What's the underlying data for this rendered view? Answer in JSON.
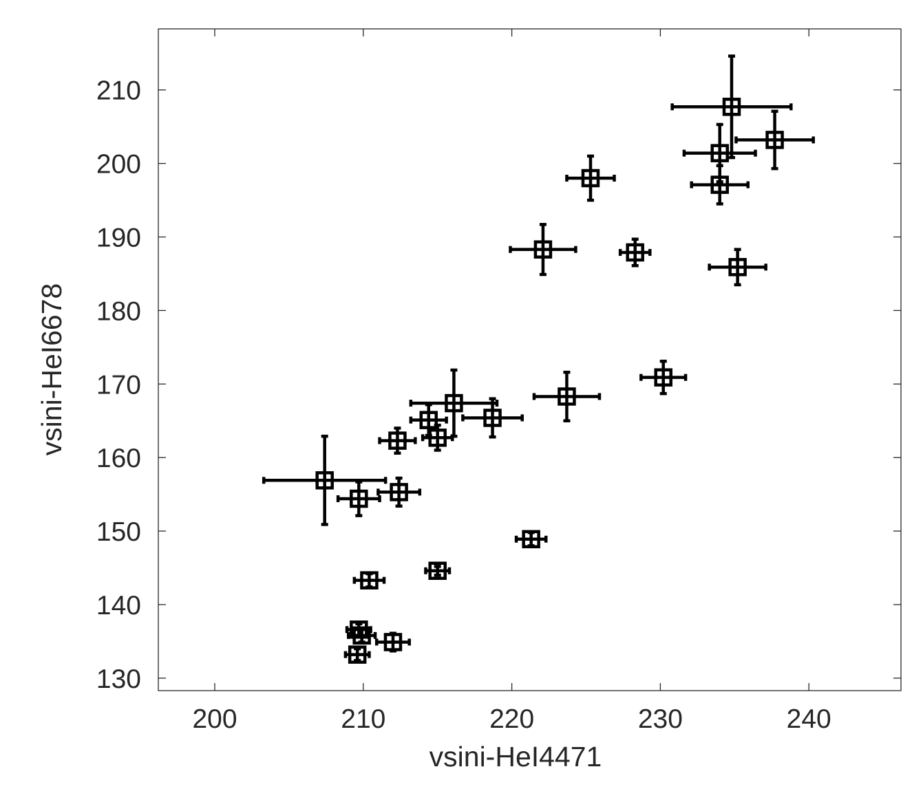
{
  "chart_data": {
    "type": "scatter",
    "title": "",
    "xlabel": "vsini-HeI4471",
    "ylabel": "vsini-HeI6678",
    "xlim": [
      196.2,
      246.2
    ],
    "ylim": [
      128.3,
      218.3
    ],
    "xticks": [
      200,
      210,
      220,
      230,
      240
    ],
    "yticks": [
      130,
      140,
      150,
      160,
      170,
      180,
      190,
      200,
      210
    ],
    "grid": false,
    "marker": "square",
    "color": "#000000",
    "points": [
      {
        "x": 234.8,
        "y": 207.7,
        "xerr": 4.0,
        "yerr": 6.9
      },
      {
        "x": 237.7,
        "y": 203.2,
        "xerr": 2.6,
        "yerr": 3.9
      },
      {
        "x": 234.0,
        "y": 201.4,
        "xerr": 2.4,
        "yerr": 3.9
      },
      {
        "x": 234.0,
        "y": 197.1,
        "xerr": 1.9,
        "yerr": 2.6
      },
      {
        "x": 225.3,
        "y": 198.0,
        "xerr": 1.6,
        "yerr": 3.0
      },
      {
        "x": 222.1,
        "y": 188.3,
        "xerr": 2.2,
        "yerr": 3.4
      },
      {
        "x": 228.3,
        "y": 187.9,
        "xerr": 1.0,
        "yerr": 1.8
      },
      {
        "x": 235.2,
        "y": 185.9,
        "xerr": 1.9,
        "yerr": 2.4
      },
      {
        "x": 230.2,
        "y": 170.9,
        "xerr": 1.5,
        "yerr": 2.2
      },
      {
        "x": 223.7,
        "y": 168.3,
        "xerr": 2.2,
        "yerr": 3.3
      },
      {
        "x": 216.1,
        "y": 167.4,
        "xerr": 2.9,
        "yerr": 4.5
      },
      {
        "x": 218.7,
        "y": 165.4,
        "xerr": 2.0,
        "yerr": 2.6
      },
      {
        "x": 214.4,
        "y": 165.1,
        "xerr": 1.2,
        "yerr": 2.1
      },
      {
        "x": 215.0,
        "y": 162.7,
        "xerr": 1.0,
        "yerr": 1.7
      },
      {
        "x": 212.3,
        "y": 162.3,
        "xerr": 1.2,
        "yerr": 1.7
      },
      {
        "x": 207.4,
        "y": 156.9,
        "xerr": 4.1,
        "yerr": 6.0
      },
      {
        "x": 209.7,
        "y": 154.4,
        "xerr": 1.4,
        "yerr": 2.3
      },
      {
        "x": 212.4,
        "y": 155.3,
        "xerr": 1.4,
        "yerr": 1.9
      },
      {
        "x": 221.3,
        "y": 148.9,
        "xerr": 1.0,
        "yerr": 0.9
      },
      {
        "x": 215.0,
        "y": 144.6,
        "xerr": 0.8,
        "yerr": 0.6
      },
      {
        "x": 210.4,
        "y": 143.3,
        "xerr": 1.0,
        "yerr": 0.9
      },
      {
        "x": 209.7,
        "y": 136.6,
        "xerr": 0.8,
        "yerr": 0.8
      },
      {
        "x": 209.9,
        "y": 135.8,
        "xerr": 0.9,
        "yerr": 0.9
      },
      {
        "x": 212.0,
        "y": 134.9,
        "xerr": 1.1,
        "yerr": 1.2
      },
      {
        "x": 209.6,
        "y": 133.2,
        "xerr": 0.8,
        "yerr": 0.8
      }
    ]
  }
}
